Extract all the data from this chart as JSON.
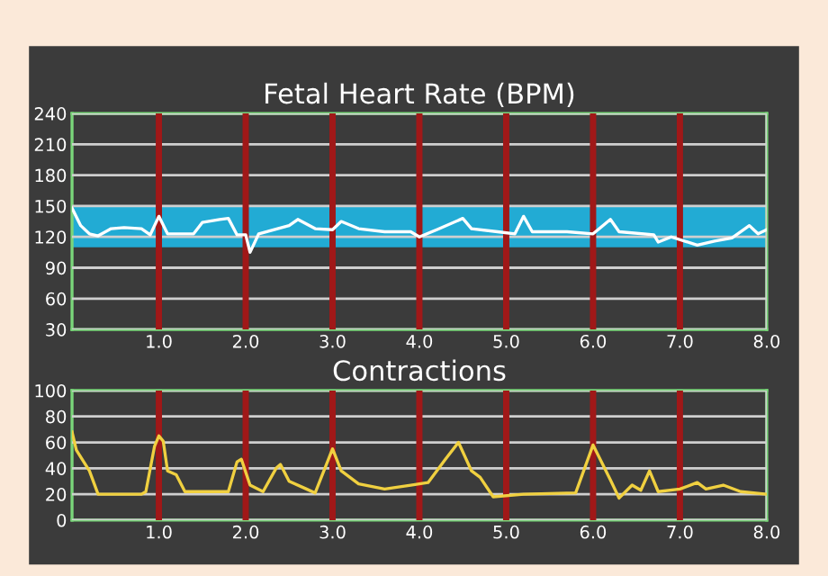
{
  "chart_data": [
    {
      "type": "line",
      "title": "Fetal Heart Rate (BPM)",
      "x": [
        0,
        0.1,
        0.2,
        0.3,
        0.45,
        0.6,
        0.8,
        0.9,
        1.0,
        1.1,
        1.4,
        1.5,
        1.7,
        1.8,
        1.9,
        2.0,
        2.05,
        2.15,
        2.5,
        2.6,
        2.8,
        3.0,
        3.1,
        3.3,
        3.6,
        3.9,
        4.0,
        4.2,
        4.5,
        4.6,
        4.9,
        5.1,
        5.2,
        5.3,
        5.7,
        6.0,
        6.2,
        6.3,
        6.7,
        6.75,
        6.9,
        7.2,
        7.4,
        7.6,
        7.8,
        7.9,
        8.0
      ],
      "series": [
        {
          "color": "#ffffff",
          "values": [
            148,
            131,
            123,
            121,
            128,
            129,
            128,
            122,
            140,
            123,
            123,
            134,
            137,
            138,
            122,
            122,
            105,
            123,
            131,
            137,
            128,
            127,
            135,
            128,
            125,
            125,
            120,
            127,
            138,
            128,
            125,
            123,
            140,
            125,
            125,
            123,
            137,
            125,
            122,
            115,
            120,
            112,
            116,
            119,
            131,
            123,
            127
          ]
        }
      ],
      "xlim": [
        0,
        8
      ],
      "ylim": [
        30,
        240
      ],
      "xticks": [
        {
          "value": 1,
          "label": "1.0"
        },
        {
          "value": 2,
          "label": "2.0"
        },
        {
          "value": 3,
          "label": "3.0"
        },
        {
          "value": 4,
          "label": "4.0"
        },
        {
          "value": 5,
          "label": "5.0"
        },
        {
          "value": 6,
          "label": "6.0"
        },
        {
          "value": 7,
          "label": "7.0"
        },
        {
          "value": 8,
          "label": "8.0"
        }
      ],
      "yticks": [
        30,
        60,
        90,
        120,
        150,
        180,
        210,
        240
      ],
      "bands": [
        {
          "axis": "y",
          "from": 110,
          "to": 150,
          "color": "#1ec0f0"
        }
      ],
      "ref_lines": [
        {
          "axis": "x",
          "value": 1,
          "color": "#a01818"
        },
        {
          "axis": "x",
          "value": 2,
          "color": "#a01818"
        },
        {
          "axis": "x",
          "value": 3,
          "color": "#a01818"
        },
        {
          "axis": "x",
          "value": 4,
          "color": "#a01818"
        },
        {
          "axis": "x",
          "value": 5,
          "color": "#a01818"
        },
        {
          "axis": "x",
          "value": 6,
          "color": "#a01818"
        },
        {
          "axis": "x",
          "value": 7,
          "color": "#a01818"
        }
      ],
      "grid": true,
      "marker": "none",
      "line_style": "solid"
    },
    {
      "type": "line",
      "title": "Contractions",
      "x": [
        0,
        0.05,
        0.2,
        0.3,
        0.8,
        0.85,
        0.95,
        1.0,
        1.05,
        1.1,
        1.2,
        1.3,
        1.8,
        1.9,
        1.95,
        2.05,
        2.2,
        2.35,
        2.4,
        2.5,
        2.7,
        2.8,
        3.0,
        3.1,
        3.3,
        3.6,
        3.9,
        4.1,
        4.3,
        4.45,
        4.6,
        4.7,
        4.85,
        5.2,
        5.8,
        6.0,
        6.2,
        6.3,
        6.45,
        6.55,
        6.65,
        6.75,
        7.0,
        7.2,
        7.3,
        7.5,
        7.7,
        8.0
      ],
      "series": [
        {
          "color": "#f0d040",
          "values": [
            68,
            54,
            38,
            20,
            20,
            22,
            57,
            65,
            61,
            38,
            35,
            22,
            22,
            45,
            47,
            27,
            22,
            40,
            43,
            30,
            24,
            21,
            55,
            38,
            28,
            24,
            27,
            29,
            47,
            60,
            38,
            33,
            18,
            20,
            21,
            58,
            31,
            17,
            27,
            23,
            38,
            22,
            24,
            29,
            24,
            27,
            22,
            20
          ]
        }
      ],
      "xlim": [
        0,
        8
      ],
      "ylim": [
        0,
        100
      ],
      "xticks": [
        {
          "value": 1,
          "label": "1.0"
        },
        {
          "value": 2,
          "label": "2.0"
        },
        {
          "value": 3,
          "label": "3.0"
        },
        {
          "value": 4,
          "label": "4.0"
        },
        {
          "value": 5,
          "label": "5.0"
        },
        {
          "value": 6,
          "label": "6.0"
        },
        {
          "value": 7,
          "label": "7.0"
        },
        {
          "value": 8,
          "label": "8.0"
        }
      ],
      "yticks": [
        0,
        20,
        40,
        60,
        80,
        100
      ],
      "ref_lines": [
        {
          "axis": "x",
          "value": 1,
          "color": "#a01818"
        },
        {
          "axis": "x",
          "value": 2,
          "color": "#a01818"
        },
        {
          "axis": "x",
          "value": 3,
          "color": "#a01818"
        },
        {
          "axis": "x",
          "value": 4,
          "color": "#a01818"
        },
        {
          "axis": "x",
          "value": 5,
          "color": "#a01818"
        },
        {
          "axis": "x",
          "value": 6,
          "color": "#a01818"
        },
        {
          "axis": "x",
          "value": 7,
          "color": "#a01818"
        }
      ],
      "grid": true,
      "marker": "none",
      "line_style": "solid"
    }
  ]
}
